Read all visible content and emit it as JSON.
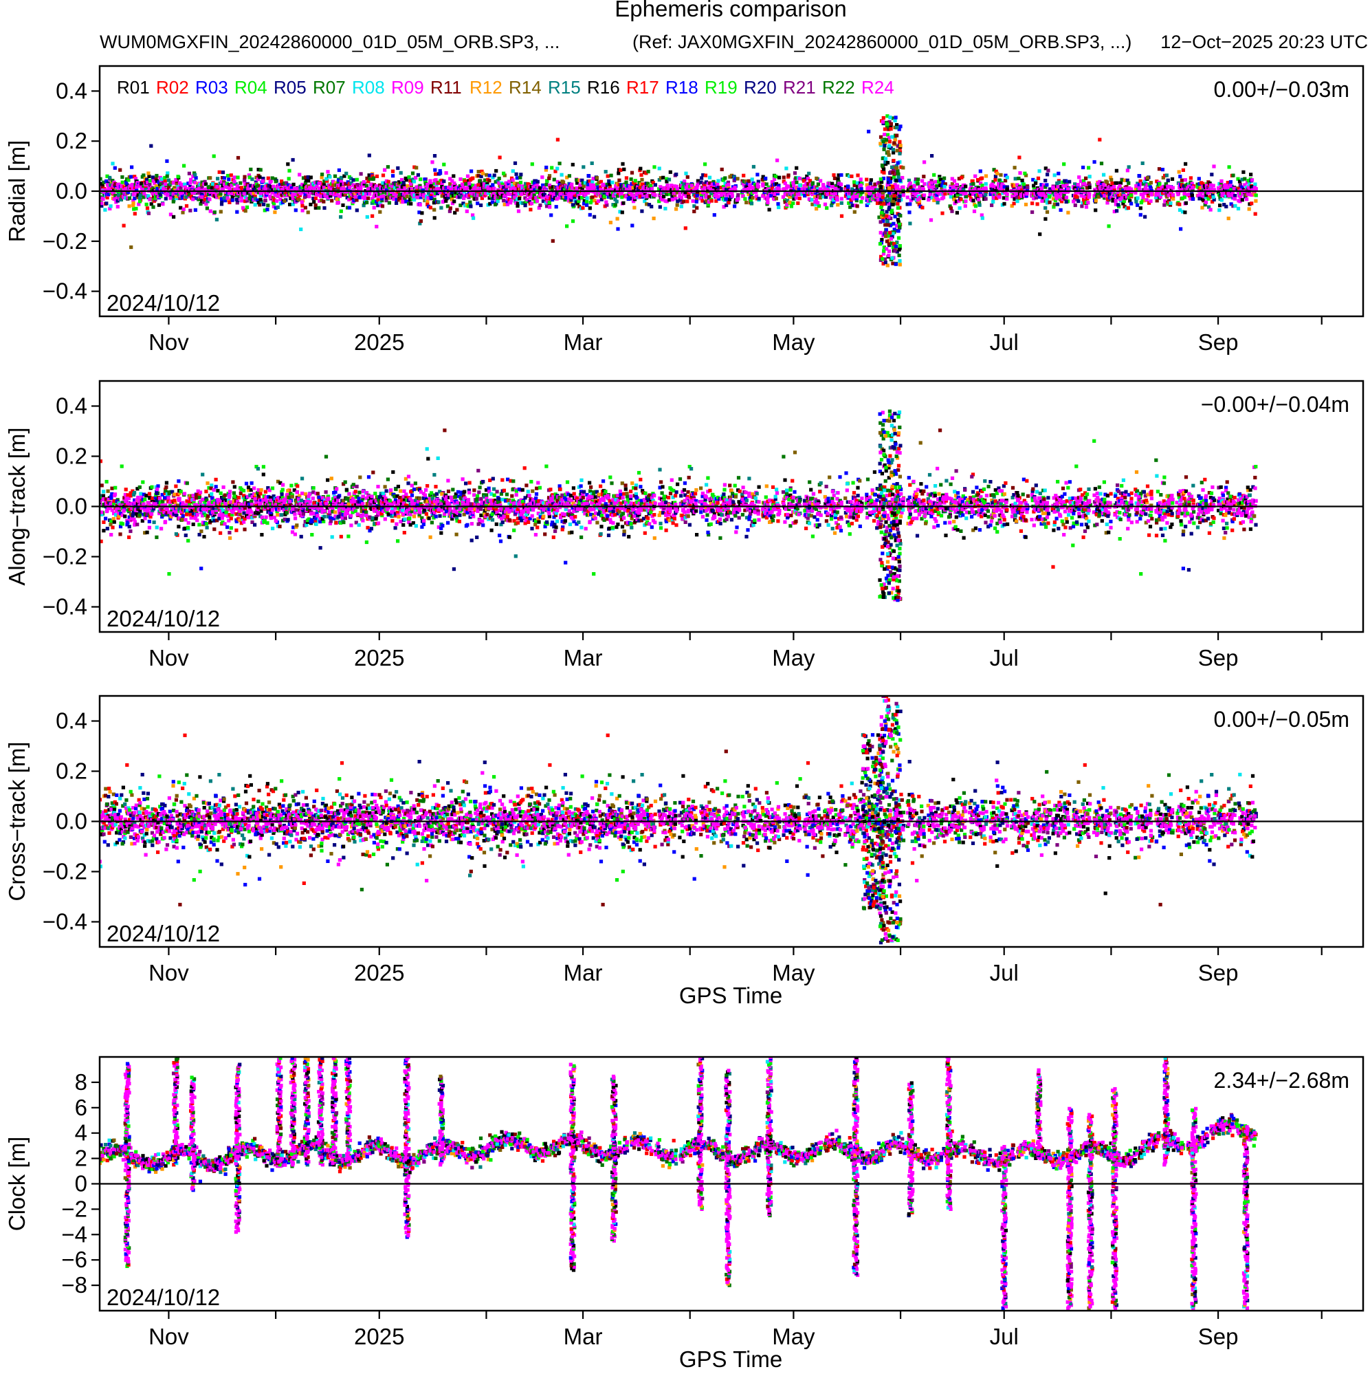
{
  "header": {
    "title": "Ephemeris comparison",
    "product": "WUM0MGXFIN_20242860000_01D_05M_ORB.SP3, ...",
    "reference": "(Ref: JAX0MGXFIN_20242860000_01D_05M_ORB.SP3, ...)",
    "generated": "12−Oct−2025 20:23 UTC"
  },
  "chart_data": [
    {
      "type": "scatter",
      "id": "radial",
      "ylabel": "Radial [m]",
      "xlabel": "",
      "stat": "0.00+/−0.03m",
      "start_label": "2024/10/12",
      "ylim": [
        -0.5,
        0.5
      ],
      "yticks": [
        -0.4,
        -0.2,
        0.0,
        0.2,
        0.4
      ],
      "ytick_labels": [
        "−0.4",
        "−0.2",
        "0.0",
        "0.2",
        "0.4"
      ],
      "xlim_days": [
        0,
        366
      ],
      "month_ticks_days": [
        20,
        51,
        81,
        112,
        140,
        171,
        201,
        232,
        262,
        293,
        324,
        354
      ],
      "xtick_labels": [
        {
          "day": 20,
          "label": "Nov"
        },
        {
          "day": 81,
          "label": "2025"
        },
        {
          "day": 140,
          "label": "Mar"
        },
        {
          "day": 201,
          "label": "May"
        },
        {
          "day": 262,
          "label": "Jul"
        },
        {
          "day": 324,
          "label": "Sep"
        }
      ],
      "data_end_day": 335,
      "mean": 0.0,
      "std": 0.03,
      "bursts": [
        {
          "day": 229,
          "amplitude": 0.3
        }
      ]
    },
    {
      "type": "scatter",
      "id": "along",
      "ylabel": "Along−track [m]",
      "xlabel": "",
      "stat": "−0.00+/−0.04m",
      "start_label": "2024/10/12",
      "ylim": [
        -0.5,
        0.5
      ],
      "yticks": [
        -0.4,
        -0.2,
        0.0,
        0.2,
        0.4
      ],
      "ytick_labels": [
        "−0.4",
        "−0.2",
        "0.0",
        "0.2",
        "0.4"
      ],
      "xlim_days": [
        0,
        366
      ],
      "month_ticks_days": [
        20,
        51,
        81,
        112,
        140,
        171,
        201,
        232,
        262,
        293,
        324,
        354
      ],
      "xtick_labels": [
        {
          "day": 20,
          "label": "Nov"
        },
        {
          "day": 81,
          "label": "2025"
        },
        {
          "day": 140,
          "label": "Mar"
        },
        {
          "day": 201,
          "label": "May"
        },
        {
          "day": 262,
          "label": "Jul"
        },
        {
          "day": 324,
          "label": "Sep"
        }
      ],
      "data_end_day": 335,
      "mean": 0.0,
      "std": 0.04,
      "bursts": [
        {
          "day": 229,
          "amplitude": 0.38
        }
      ]
    },
    {
      "type": "scatter",
      "id": "cross",
      "ylabel": "Cross−track [m]",
      "xlabel": "GPS Time",
      "stat": "0.00+/−0.05m",
      "start_label": "2024/10/12",
      "ylim": [
        -0.5,
        0.5
      ],
      "yticks": [
        -0.4,
        -0.2,
        0.0,
        0.2,
        0.4
      ],
      "ytick_labels": [
        "−0.4",
        "−0.2",
        "0.0",
        "0.2",
        "0.4"
      ],
      "xlim_days": [
        0,
        366
      ],
      "month_ticks_days": [
        20,
        51,
        81,
        112,
        140,
        171,
        201,
        232,
        262,
        293,
        324,
        354
      ],
      "xtick_labels": [
        {
          "day": 20,
          "label": "Nov"
        },
        {
          "day": 81,
          "label": "2025"
        },
        {
          "day": 140,
          "label": "Mar"
        },
        {
          "day": 201,
          "label": "May"
        },
        {
          "day": 262,
          "label": "Jul"
        },
        {
          "day": 324,
          "label": "Sep"
        }
      ],
      "data_end_day": 335,
      "mean": 0.0,
      "std": 0.05,
      "bursts": [
        {
          "day": 224,
          "amplitude": 0.35
        },
        {
          "day": 229,
          "amplitude": 0.5
        }
      ]
    },
    {
      "type": "scatter",
      "id": "clock",
      "ylabel": "Clock [m]",
      "xlabel": "GPS Time",
      "stat": "2.34+/−2.68m",
      "start_label": "2024/10/12",
      "ylim": [
        -10,
        10
      ],
      "yticks": [
        -8,
        -6,
        -4,
        -2,
        0,
        2,
        4,
        6,
        8
      ],
      "ytick_labels": [
        "−8",
        "−6",
        "−4",
        "−2",
        "0",
        "2",
        "4",
        "6",
        "8"
      ],
      "xlim_days": [
        0,
        366
      ],
      "month_ticks_days": [
        20,
        51,
        81,
        112,
        140,
        171,
        201,
        232,
        262,
        293,
        324,
        354
      ],
      "xtick_labels": [
        {
          "day": 20,
          "label": "Nov"
        },
        {
          "day": 81,
          "label": "2025"
        },
        {
          "day": 140,
          "label": "Mar"
        },
        {
          "day": 201,
          "label": "May"
        },
        {
          "day": 262,
          "label": "Jul"
        },
        {
          "day": 324,
          "label": "Sep"
        }
      ],
      "data_end_day": 335,
      "mean": 2.34,
      "std": 2.68,
      "baseline": [
        [
          0,
          2.2
        ],
        [
          30,
          2.0
        ],
        [
          60,
          2.5
        ],
        [
          90,
          2.3
        ],
        [
          120,
          3.0
        ],
        [
          150,
          2.8
        ],
        [
          180,
          2.5
        ],
        [
          210,
          2.7
        ],
        [
          240,
          2.4
        ],
        [
          270,
          2.2
        ],
        [
          300,
          2.5
        ],
        [
          320,
          3.8
        ],
        [
          335,
          4.5
        ]
      ],
      "spikes": [
        {
          "day": 8,
          "low": -6.5,
          "high": 9.5
        },
        {
          "day": 22,
          "low": 1.5,
          "high": 10
        },
        {
          "day": 27,
          "low": -0.5,
          "high": 8.5
        },
        {
          "day": 40,
          "low": -3.8,
          "high": 9.5
        },
        {
          "day": 52,
          "low": 1.5,
          "high": 10
        },
        {
          "day": 56,
          "low": 1.5,
          "high": 10
        },
        {
          "day": 60,
          "low": 1.5,
          "high": 10
        },
        {
          "day": 64,
          "low": 1.5,
          "high": 10
        },
        {
          "day": 68,
          "low": 1.5,
          "high": 10
        },
        {
          "day": 72,
          "low": 1.5,
          "high": 10
        },
        {
          "day": 89,
          "low": -4.2,
          "high": 10
        },
        {
          "day": 99,
          "low": 1.5,
          "high": 8.5
        },
        {
          "day": 137,
          "low": -6.8,
          "high": 9.5
        },
        {
          "day": 149,
          "low": -4.5,
          "high": 8.5
        },
        {
          "day": 174,
          "low": -2.0,
          "high": 10
        },
        {
          "day": 182,
          "low": -8.0,
          "high": 9.0
        },
        {
          "day": 194,
          "low": -2.5,
          "high": 10
        },
        {
          "day": 219,
          "low": -7.2,
          "high": 10
        },
        {
          "day": 235,
          "low": -2.5,
          "high": 8.0
        },
        {
          "day": 246,
          "low": -2.0,
          "high": 10
        },
        {
          "day": 262,
          "low": -9.8,
          "high": 3.0
        },
        {
          "day": 272,
          "low": 2.0,
          "high": 9.0
        },
        {
          "day": 281,
          "low": -9.8,
          "high": 6.0
        },
        {
          "day": 287,
          "low": -9.8,
          "high": 5.5
        },
        {
          "day": 294,
          "low": -9.8,
          "high": 7.5
        },
        {
          "day": 309,
          "low": 1.5,
          "high": 10
        },
        {
          "day": 317,
          "low": -9.8,
          "high": 6.0
        },
        {
          "day": 332,
          "low": -9.8,
          "high": 4.5
        }
      ]
    }
  ],
  "legend": {
    "satellites": [
      "R01",
      "R02",
      "R03",
      "R04",
      "R05",
      "R07",
      "R08",
      "R09",
      "R11",
      "R12",
      "R14",
      "R15",
      "R16",
      "R17",
      "R18",
      "R19",
      "R20",
      "R21",
      "R22",
      "R24"
    ],
    "colors": [
      "#000000",
      "#ff0000",
      "#0000ff",
      "#00ee00",
      "#000080",
      "#007700",
      "#00e5ee",
      "#ff00ff",
      "#800000",
      "#ff9900",
      "#806000",
      "#008080",
      "#000000",
      "#ff0000",
      "#0000ff",
      "#00ee00",
      "#000080",
      "#800080",
      "#007700",
      "#ff00ff"
    ]
  }
}
